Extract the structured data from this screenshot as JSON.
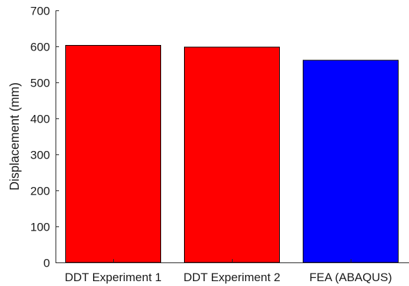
{
  "chart_data": {
    "type": "bar",
    "title": "",
    "xlabel": "",
    "ylabel": "Displacement (mm)",
    "categories": [
      "DDT Experiment 1",
      "DDT Experiment 2",
      "FEA (ABAQUS)"
    ],
    "values": [
      603,
      598,
      562
    ],
    "bar_colors": [
      "#ff0000",
      "#ff0000",
      "#0000ff"
    ],
    "ylim": [
      0,
      700
    ],
    "yticks": [
      0,
      100,
      200,
      300,
      400,
      500,
      600,
      700
    ],
    "grid": false,
    "legend": "none"
  }
}
